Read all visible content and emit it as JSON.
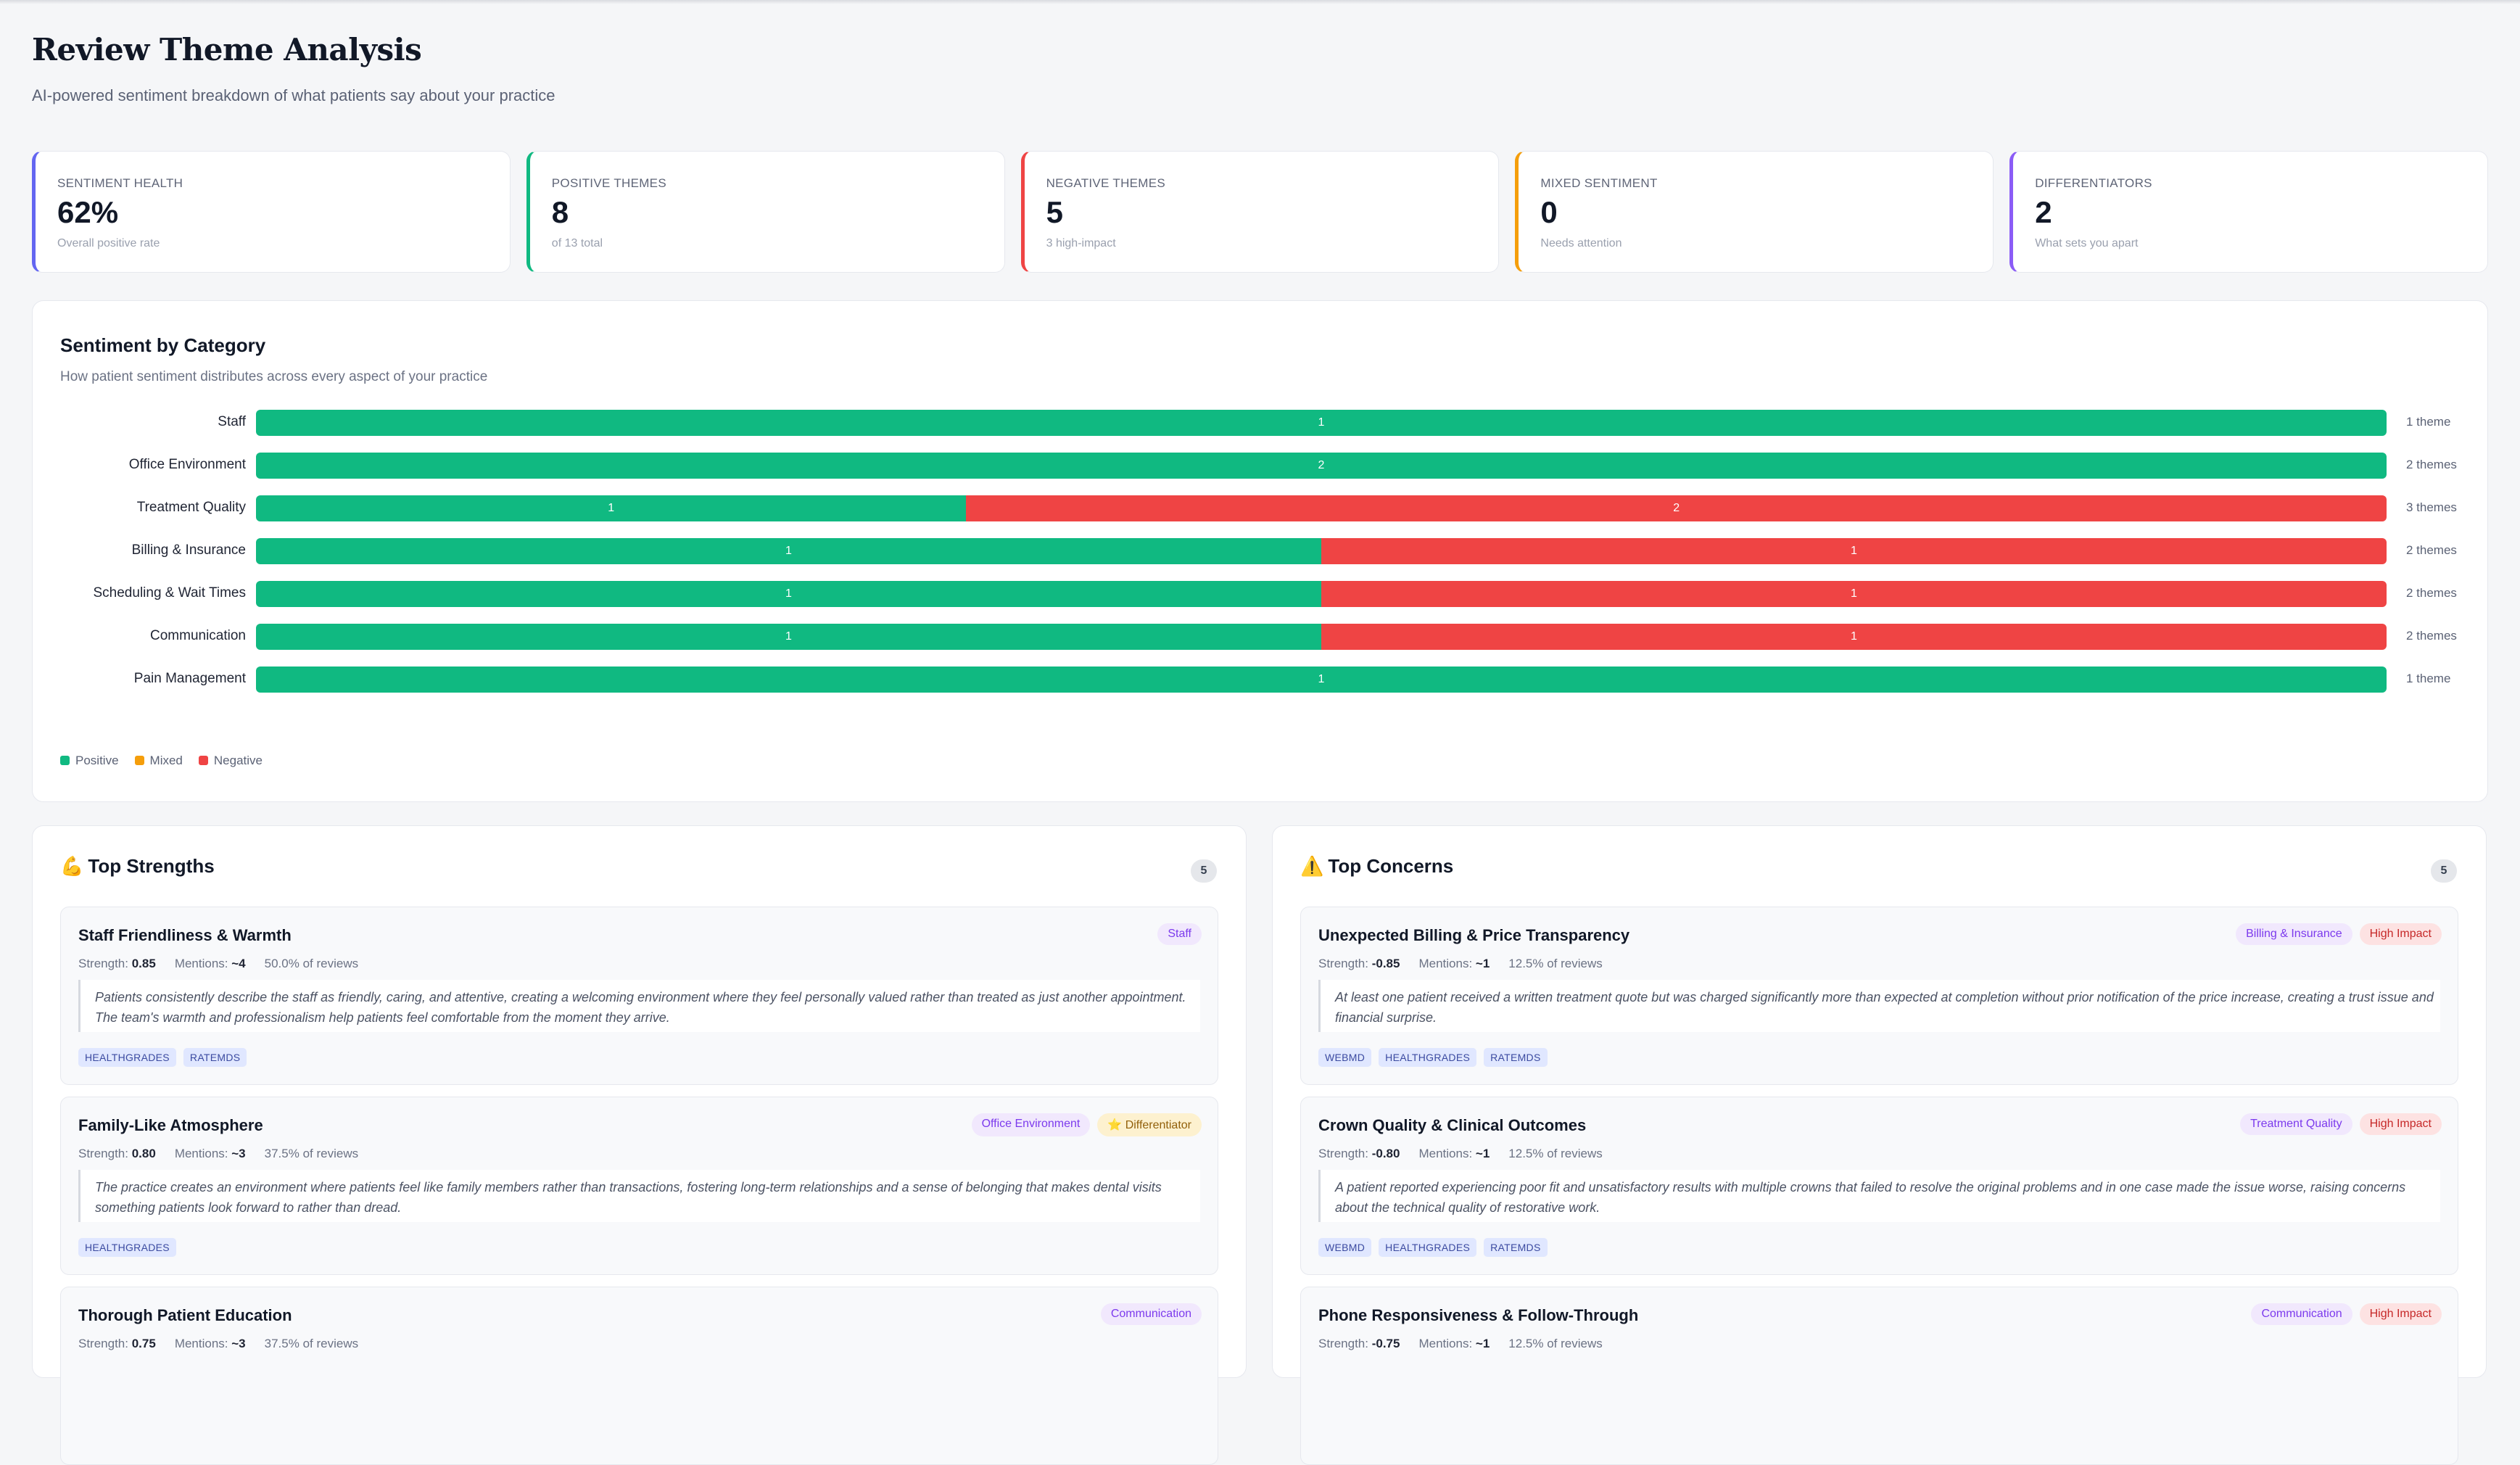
{
  "header": {
    "title": "Review Theme Analysis",
    "subtitle": "AI-powered sentiment breakdown of what patients say about your practice"
  },
  "kpis": [
    {
      "label": "SENTIMENT HEALTH",
      "value": "62%",
      "note": "Overall positive rate",
      "color": "#6366f1"
    },
    {
      "label": "POSITIVE THEMES",
      "value": "8",
      "note": "of 13 total",
      "color": "#10b981"
    },
    {
      "label": "NEGATIVE THEMES",
      "value": "5",
      "note": "3 high-impact",
      "color": "#ef4444"
    },
    {
      "label": "MIXED SENTIMENT",
      "value": "0",
      "note": "Needs attention",
      "color": "#f59e0b"
    },
    {
      "label": "DIFFERENTIATORS",
      "value": "2",
      "note": "What sets you apart",
      "color": "#8b5cf6"
    }
  ],
  "sentiment": {
    "title": "Sentiment by Category",
    "subtitle": "How patient sentiment distributes across every aspect of your practice",
    "legend": [
      {
        "label": "Positive",
        "color": "#10b981"
      },
      {
        "label": "Mixed",
        "color": "#f59e0b"
      },
      {
        "label": "Negative",
        "color": "#ef4444"
      }
    ]
  },
  "chart_data": {
    "type": "bar",
    "orientation": "horizontal",
    "stacked": true,
    "categories": [
      "Staff",
      "Office Environment",
      "Treatment Quality",
      "Billing & Insurance",
      "Scheduling & Wait Times",
      "Communication",
      "Pain Management"
    ],
    "series": [
      {
        "name": "Positive",
        "values": [
          1,
          2,
          1,
          1,
          1,
          1,
          1
        ]
      },
      {
        "name": "Mixed",
        "values": [
          0,
          0,
          0,
          0,
          0,
          0,
          0
        ]
      },
      {
        "name": "Negative",
        "values": [
          0,
          0,
          2,
          1,
          1,
          1,
          0
        ]
      }
    ],
    "totals_label": [
      "1 theme",
      "2 themes",
      "3 themes",
      "2 themes",
      "2 themes",
      "2 themes",
      "1 theme"
    ],
    "legend_position": "bottom-left"
  },
  "strengths": {
    "title": "Top Strengths",
    "icon": "💪",
    "count": "5",
    "items": [
      {
        "title": "Staff Friendliness & Warmth",
        "strength": "0.85",
        "mentions": "~4",
        "pct": "50.0% of reviews",
        "quote": "Patients consistently describe the staff as friendly, caring, and attentive, creating a welcoming environment where they feel personally valued rather than treated as just another appointment. The team's warmth and professionalism help patients feel comfortable from the moment they arrive.",
        "sources": [
          "HEALTHGRADES",
          "RATEMDS"
        ],
        "tags": [
          {
            "text": "Staff",
            "kind": "cat"
          }
        ]
      },
      {
        "title": "Family-Like Atmosphere",
        "strength": "0.80",
        "mentions": "~3",
        "pct": "37.5% of reviews",
        "quote": "The practice creates an environment where patients feel like family members rather than transactions, fostering long-term relationships and a sense of belonging that makes dental visits something patients look forward to rather than dread.",
        "sources": [
          "HEALTHGRADES"
        ],
        "tags": [
          {
            "text": "Office Environment",
            "kind": "cat"
          },
          {
            "text": "⭐ Differentiator",
            "kind": "diff"
          }
        ]
      },
      {
        "title": "Thorough Patient Education",
        "strength": "0.75",
        "mentions": "~3",
        "pct": "37.5% of reviews",
        "quote": "",
        "sources": [],
        "tags": [
          {
            "text": "Communication",
            "kind": "cat"
          }
        ]
      }
    ]
  },
  "concerns": {
    "title": "Top Concerns",
    "icon": "⚠️",
    "count": "5",
    "items": [
      {
        "title": "Unexpected Billing & Price Transparency",
        "strength": "-0.85",
        "mentions": "~1",
        "pct": "12.5% of reviews",
        "quote": "At least one patient received a written treatment quote but was charged significantly more than expected at completion without prior notification of the price increase, creating a trust issue and financial surprise.",
        "sources": [
          "WEBMD",
          "HEALTHGRADES",
          "RATEMDS"
        ],
        "tags": [
          {
            "text": "Billing & Insurance",
            "kind": "cat"
          },
          {
            "text": "High Impact",
            "kind": "high"
          }
        ]
      },
      {
        "title": "Crown Quality & Clinical Outcomes",
        "strength": "-0.80",
        "mentions": "~1",
        "pct": "12.5% of reviews",
        "quote": "A patient reported experiencing poor fit and unsatisfactory results with multiple crowns that failed to resolve the original problems and in one case made the issue worse, raising concerns about the technical quality of restorative work.",
        "sources": [
          "WEBMD",
          "HEALTHGRADES",
          "RATEMDS"
        ],
        "tags": [
          {
            "text": "Treatment Quality",
            "kind": "cat"
          },
          {
            "text": "High Impact",
            "kind": "high"
          }
        ]
      },
      {
        "title": "Phone Responsiveness & Follow-Through",
        "strength": "-0.75",
        "mentions": "~1",
        "pct": "12.5% of reviews",
        "quote": "",
        "sources": [],
        "tags": [
          {
            "text": "Communication",
            "kind": "cat"
          },
          {
            "text": "High Impact",
            "kind": "high"
          }
        ]
      }
    ]
  },
  "labels": {
    "strength": "Strength:",
    "mentions": "Mentions:"
  }
}
